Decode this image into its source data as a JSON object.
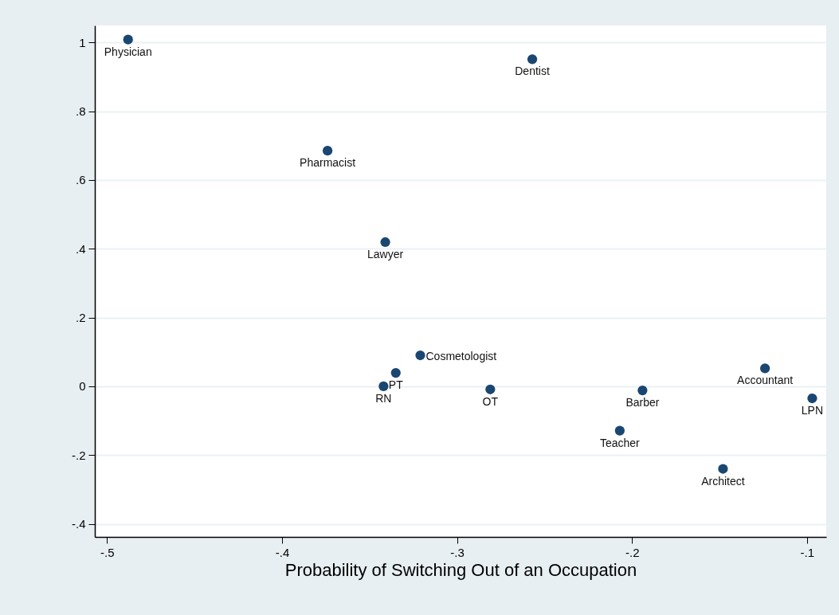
{
  "chart_data": {
    "type": "scatter",
    "xlabel": "Probability of Switching Out of an Occupation",
    "x": [
      -0.488,
      -0.257,
      -0.374,
      -0.341,
      -0.321,
      -0.335,
      -0.342,
      -0.281,
      -0.194,
      -0.207,
      -0.148,
      -0.124,
      -0.097
    ],
    "series": [
      {
        "color": "#1a4672",
        "values": [
          1.008,
          0.951,
          0.685,
          0.419,
          0.09,
          0.039,
          0,
          -0.009,
          -0.012,
          -0.129,
          -0.24,
          0.052,
          -0.035
        ]
      }
    ],
    "annotations": [
      {
        "text": "Physician",
        "x": -0.488,
        "y": 1.008
      },
      {
        "text": "Dentist",
        "x": -0.257,
        "y": 0.951
      },
      {
        "text": "Pharmacist",
        "x": -0.374,
        "y": 0.685
      },
      {
        "text": "Lawyer",
        "x": -0.341,
        "y": 0.419
      },
      {
        "text": "Cosmetologist",
        "x": -0.321,
        "y": 0.09
      },
      {
        "text": "PT",
        "x": -0.335,
        "y": 0.039
      },
      {
        "text": "RN",
        "x": -0.342,
        "y": 0
      },
      {
        "text": "OT",
        "x": -0.281,
        "y": -0.009
      },
      {
        "text": "Barber",
        "x": -0.194,
        "y": -0.012
      },
      {
        "text": "Teacher",
        "x": -0.207,
        "y": -0.129
      },
      {
        "text": "Architect",
        "x": -0.148,
        "y": -0.24
      },
      {
        "text": "Accountant",
        "x": -0.124,
        "y": 0.052
      },
      {
        "text": "LPN",
        "x": -0.097,
        "y": -0.035
      }
    ],
    "xlim": [
      -0.507,
      -0.089
    ],
    "ylim": [
      -0.438,
      1.049
    ],
    "xticks": [
      {
        "value": -0.5,
        "label": "-.5"
      },
      {
        "value": -0.4,
        "label": "-.4"
      },
      {
        "value": -0.3,
        "label": "-.3"
      },
      {
        "value": -0.2,
        "label": "-.2"
      },
      {
        "value": -0.1,
        "label": "-.1"
      }
    ],
    "yticks": [
      {
        "value": -0.4,
        "label": "-.4"
      },
      {
        "value": -0.2,
        "label": "-.2"
      },
      0,
      {
        "value": 0.2,
        "label": ".2"
      },
      {
        "value": 0.4,
        "label": ".4"
      },
      {
        "value": 0.6,
        "label": ".6"
      },
      {
        "value": 0.8,
        "label": ".8"
      },
      1
    ],
    "grid": "y",
    "marker": "circle"
  }
}
